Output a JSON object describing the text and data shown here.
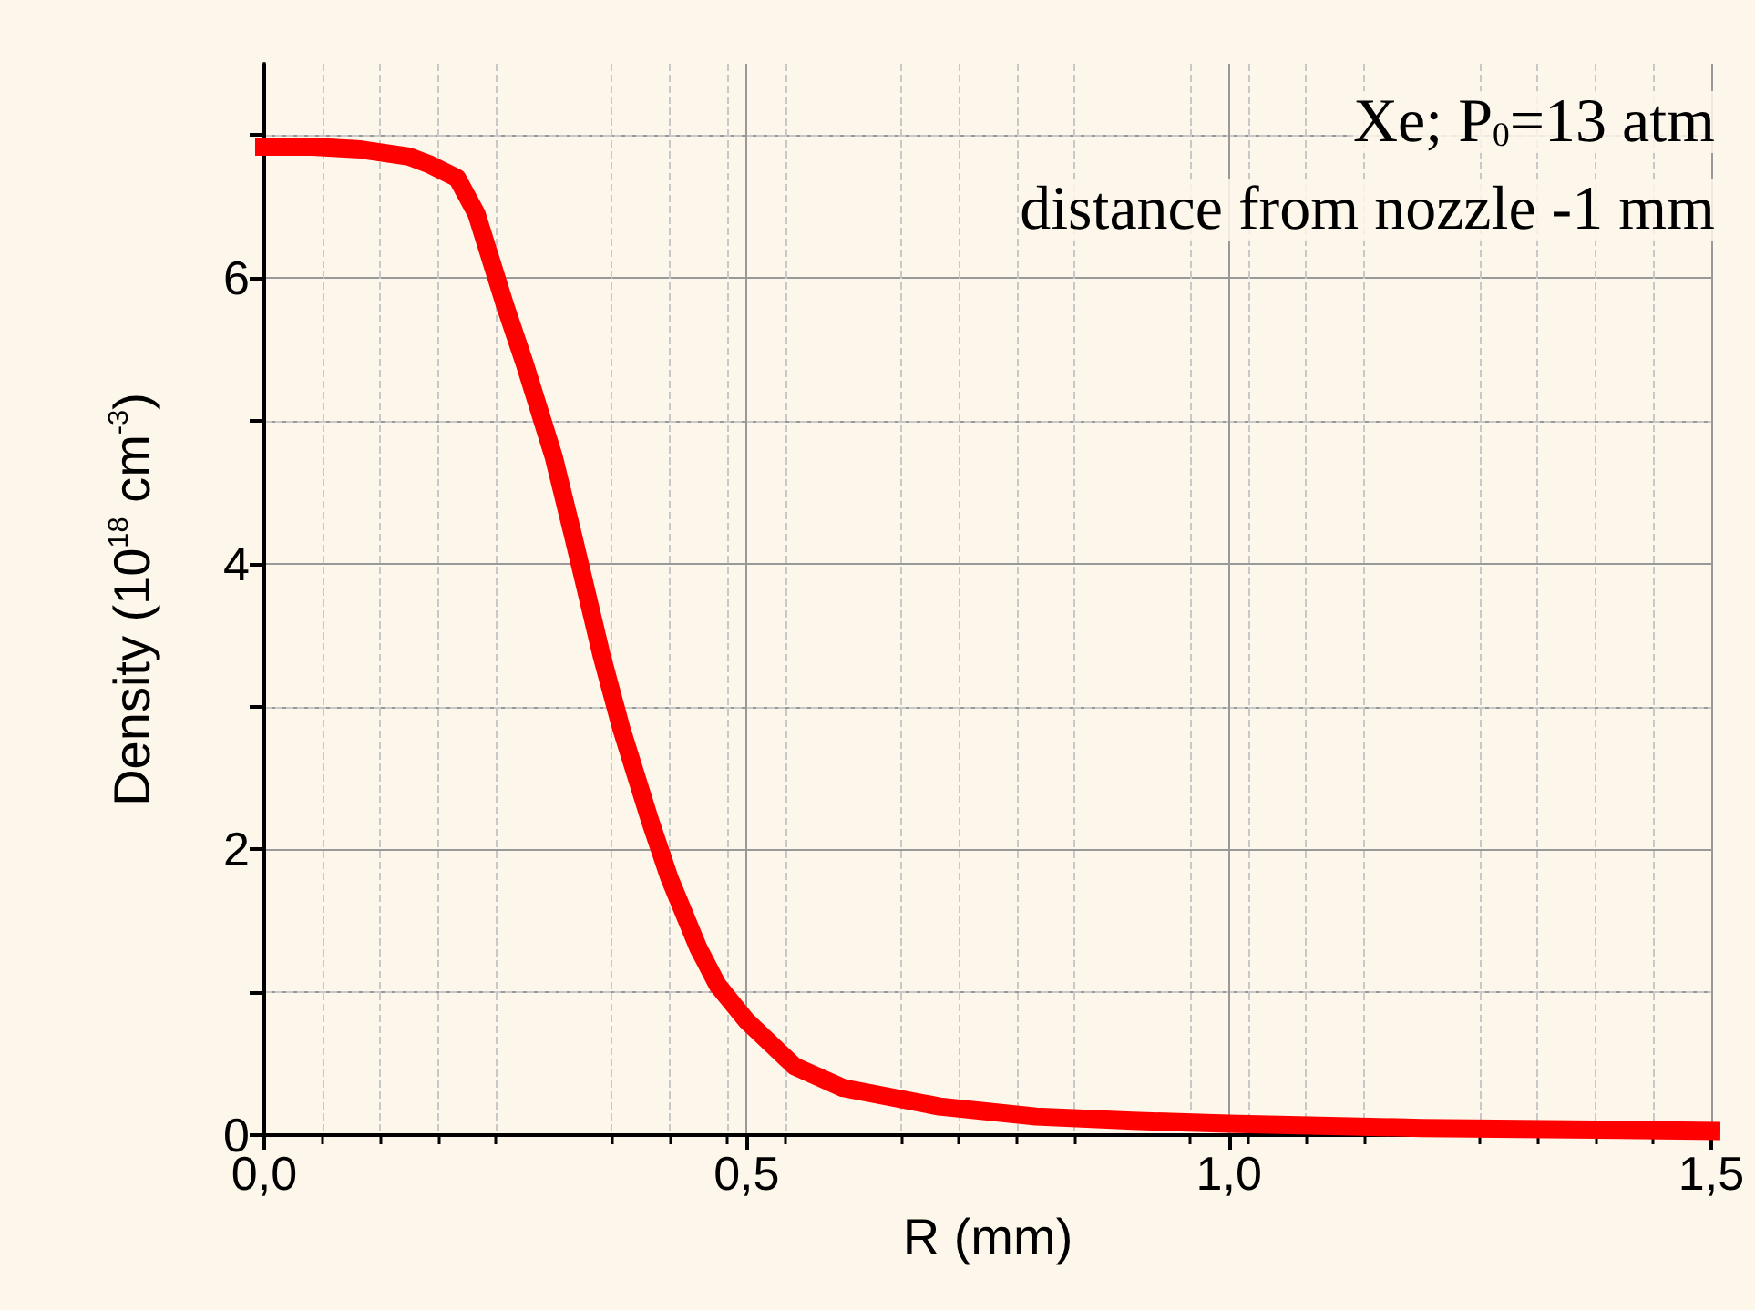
{
  "chart_data": {
    "type": "line",
    "xlabel": "R (mm)",
    "ylabel": "Density (10$^{18}$ cm$^{-3}$)",
    "annotations": [
      "Xe; P$_{0}$=13 atm",
      "distance from nozzle -1 mm"
    ],
    "x": [
      0,
      0.05,
      0.1,
      0.15,
      0.17,
      0.2,
      0.22,
      0.25,
      0.27,
      0.3,
      0.32,
      0.35,
      0.37,
      0.4,
      0.42,
      0.45,
      0.47,
      0.5,
      0.55,
      0.6,
      0.7,
      0.8,
      0.9,
      1.0,
      1.2,
      1.5
    ],
    "series": [
      {
        "color": "#ff0000",
        "values": [
          6.92,
          6.92,
          6.9,
          6.85,
          6.8,
          6.7,
          6.45,
          5.8,
          5.4,
          4.75,
          4.2,
          3.35,
          2.85,
          2.2,
          1.8,
          1.31,
          1.05,
          0.8,
          0.48,
          0.33,
          0.2,
          0.13,
          0.1,
          0.08,
          0.05,
          0.03
        ]
      }
    ],
    "xlim": [
      0,
      1.5
    ],
    "xticks": [
      {
        "value": 0,
        "label": "0,0"
      },
      {
        "value": 0.5,
        "label": "0,5"
      },
      {
        "value": 1,
        "label": "1,0"
      },
      {
        "value": 1.5,
        "label": "1,5"
      }
    ],
    "ylim": [
      0,
      7.5
    ],
    "yticks": [
      0,
      {
        "value": 1,
        "label": null
      },
      2,
      {
        "value": 3,
        "label": null
      },
      4,
      {
        "value": 5,
        "label": null
      },
      6,
      {
        "value": 7,
        "label": null
      }
    ],
    "grid": true,
    "line_style": "solid"
  }
}
